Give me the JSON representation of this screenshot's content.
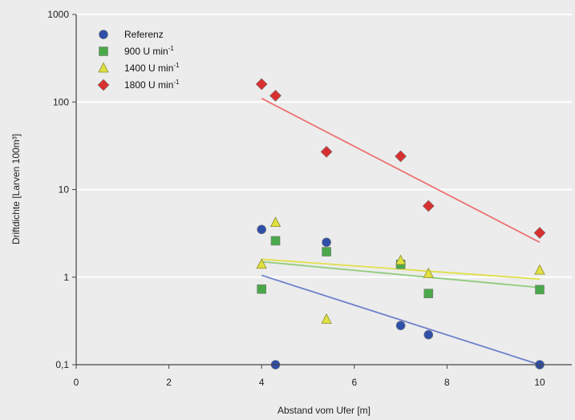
{
  "chart_data": {
    "type": "scatter",
    "xlabel": "Abstand vom Ufer [m]",
    "ylabel": "Driftdichte [Larven 100m³]",
    "xlim": [
      0,
      10.8
    ],
    "ylim": [
      0.1,
      1000
    ],
    "yscale": "log",
    "xticks": [
      0,
      2,
      4,
      6,
      8,
      10
    ],
    "yticks": [
      0.1,
      1,
      10,
      100,
      1000
    ],
    "ytick_labels": [
      "0,1",
      "1",
      "10",
      "100",
      "1000"
    ],
    "grid": "horizontal",
    "legend_position": "top-left",
    "series": [
      {
        "name": "Referenz",
        "base": "Referenz",
        "sup": "",
        "marker": "circle",
        "color": "#2f4fa8",
        "trend_color": "#6e7fcc",
        "x": [
          4.0,
          4.3,
          5.4,
          7.0,
          7.6,
          10.0
        ],
        "y": [
          3.5,
          0.1,
          2.5,
          0.28,
          0.22,
          0.1
        ],
        "trend": [
          [
            4.0,
            1.05
          ],
          [
            10.0,
            0.1
          ]
        ]
      },
      {
        "name": "900 U min-1",
        "base": "900 U min",
        "sup": "-1",
        "marker": "square",
        "color": "#4aa84a",
        "trend_color": "#8fcc7a",
        "x": [
          4.0,
          4.3,
          5.4,
          7.0,
          7.6,
          10.0
        ],
        "y": [
          0.73,
          2.6,
          1.95,
          1.4,
          0.65,
          0.72
        ],
        "trend": [
          [
            4.0,
            1.5
          ],
          [
            10.0,
            0.76
          ]
        ]
      },
      {
        "name": "1400 U min-1",
        "base": "1400 U min",
        "sup": "-1",
        "marker": "triangle",
        "color": "#e0e040",
        "trend_color": "#e0e04a",
        "x": [
          4.0,
          4.3,
          5.4,
          7.0,
          7.6,
          10.0
        ],
        "y": [
          1.4,
          4.2,
          0.33,
          1.55,
          1.1,
          1.2
        ],
        "trend": [
          [
            4.0,
            1.6
          ],
          [
            10.0,
            0.95
          ]
        ]
      },
      {
        "name": "1800 U min-1",
        "base": "1800 U min",
        "sup": "-1",
        "marker": "diamond",
        "color": "#d83030",
        "trend_color": "#ee7070",
        "x": [
          4.0,
          4.3,
          5.4,
          7.0,
          7.6,
          10.0
        ],
        "y": [
          160,
          118,
          27,
          24,
          6.5,
          3.2
        ],
        "trend": [
          [
            4.0,
            110
          ],
          [
            10.0,
            2.5
          ]
        ]
      }
    ]
  }
}
